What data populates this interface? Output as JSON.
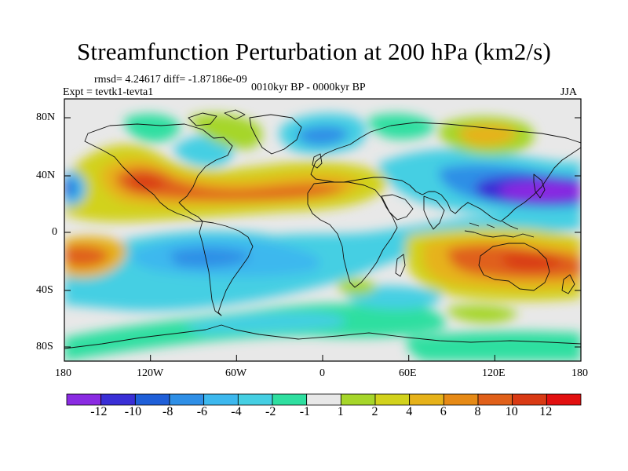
{
  "title": "Streamfunction Perturbation at 200 hPa (km2/s)",
  "stats": "rmsd= 4.24617 diff= -1.87186e-09",
  "experiment": "Expt = tevtk1-tevta1",
  "period": "0010kyr BP - 0000kyr BP",
  "season": "JJA",
  "axes": {
    "lat_ticks": [
      "80N",
      "40N",
      "0",
      "40S",
      "80S"
    ],
    "lon_ticks": [
      "180",
      "120W",
      "60W",
      "0",
      "60E",
      "120E",
      "180"
    ]
  },
  "colorbar": {
    "colors": [
      "#8a2be2",
      "#3a2fd6",
      "#1f5fd8",
      "#2f8fe6",
      "#3db8ee",
      "#45cfe3",
      "#2fdfa0",
      "#e8e8e8",
      "#a6d62a",
      "#d2d21c",
      "#e6b21a",
      "#e68a16",
      "#e0601a",
      "#d93a14",
      "#e21010"
    ],
    "labels": [
      "-12",
      "-10",
      "-8",
      "-6",
      "-4",
      "-2",
      "-1",
      "1",
      "2",
      "4",
      "6",
      "8",
      "10",
      "12"
    ]
  },
  "colors": {
    "neutral": "#e8e8e8",
    "coast": "#111111"
  }
}
